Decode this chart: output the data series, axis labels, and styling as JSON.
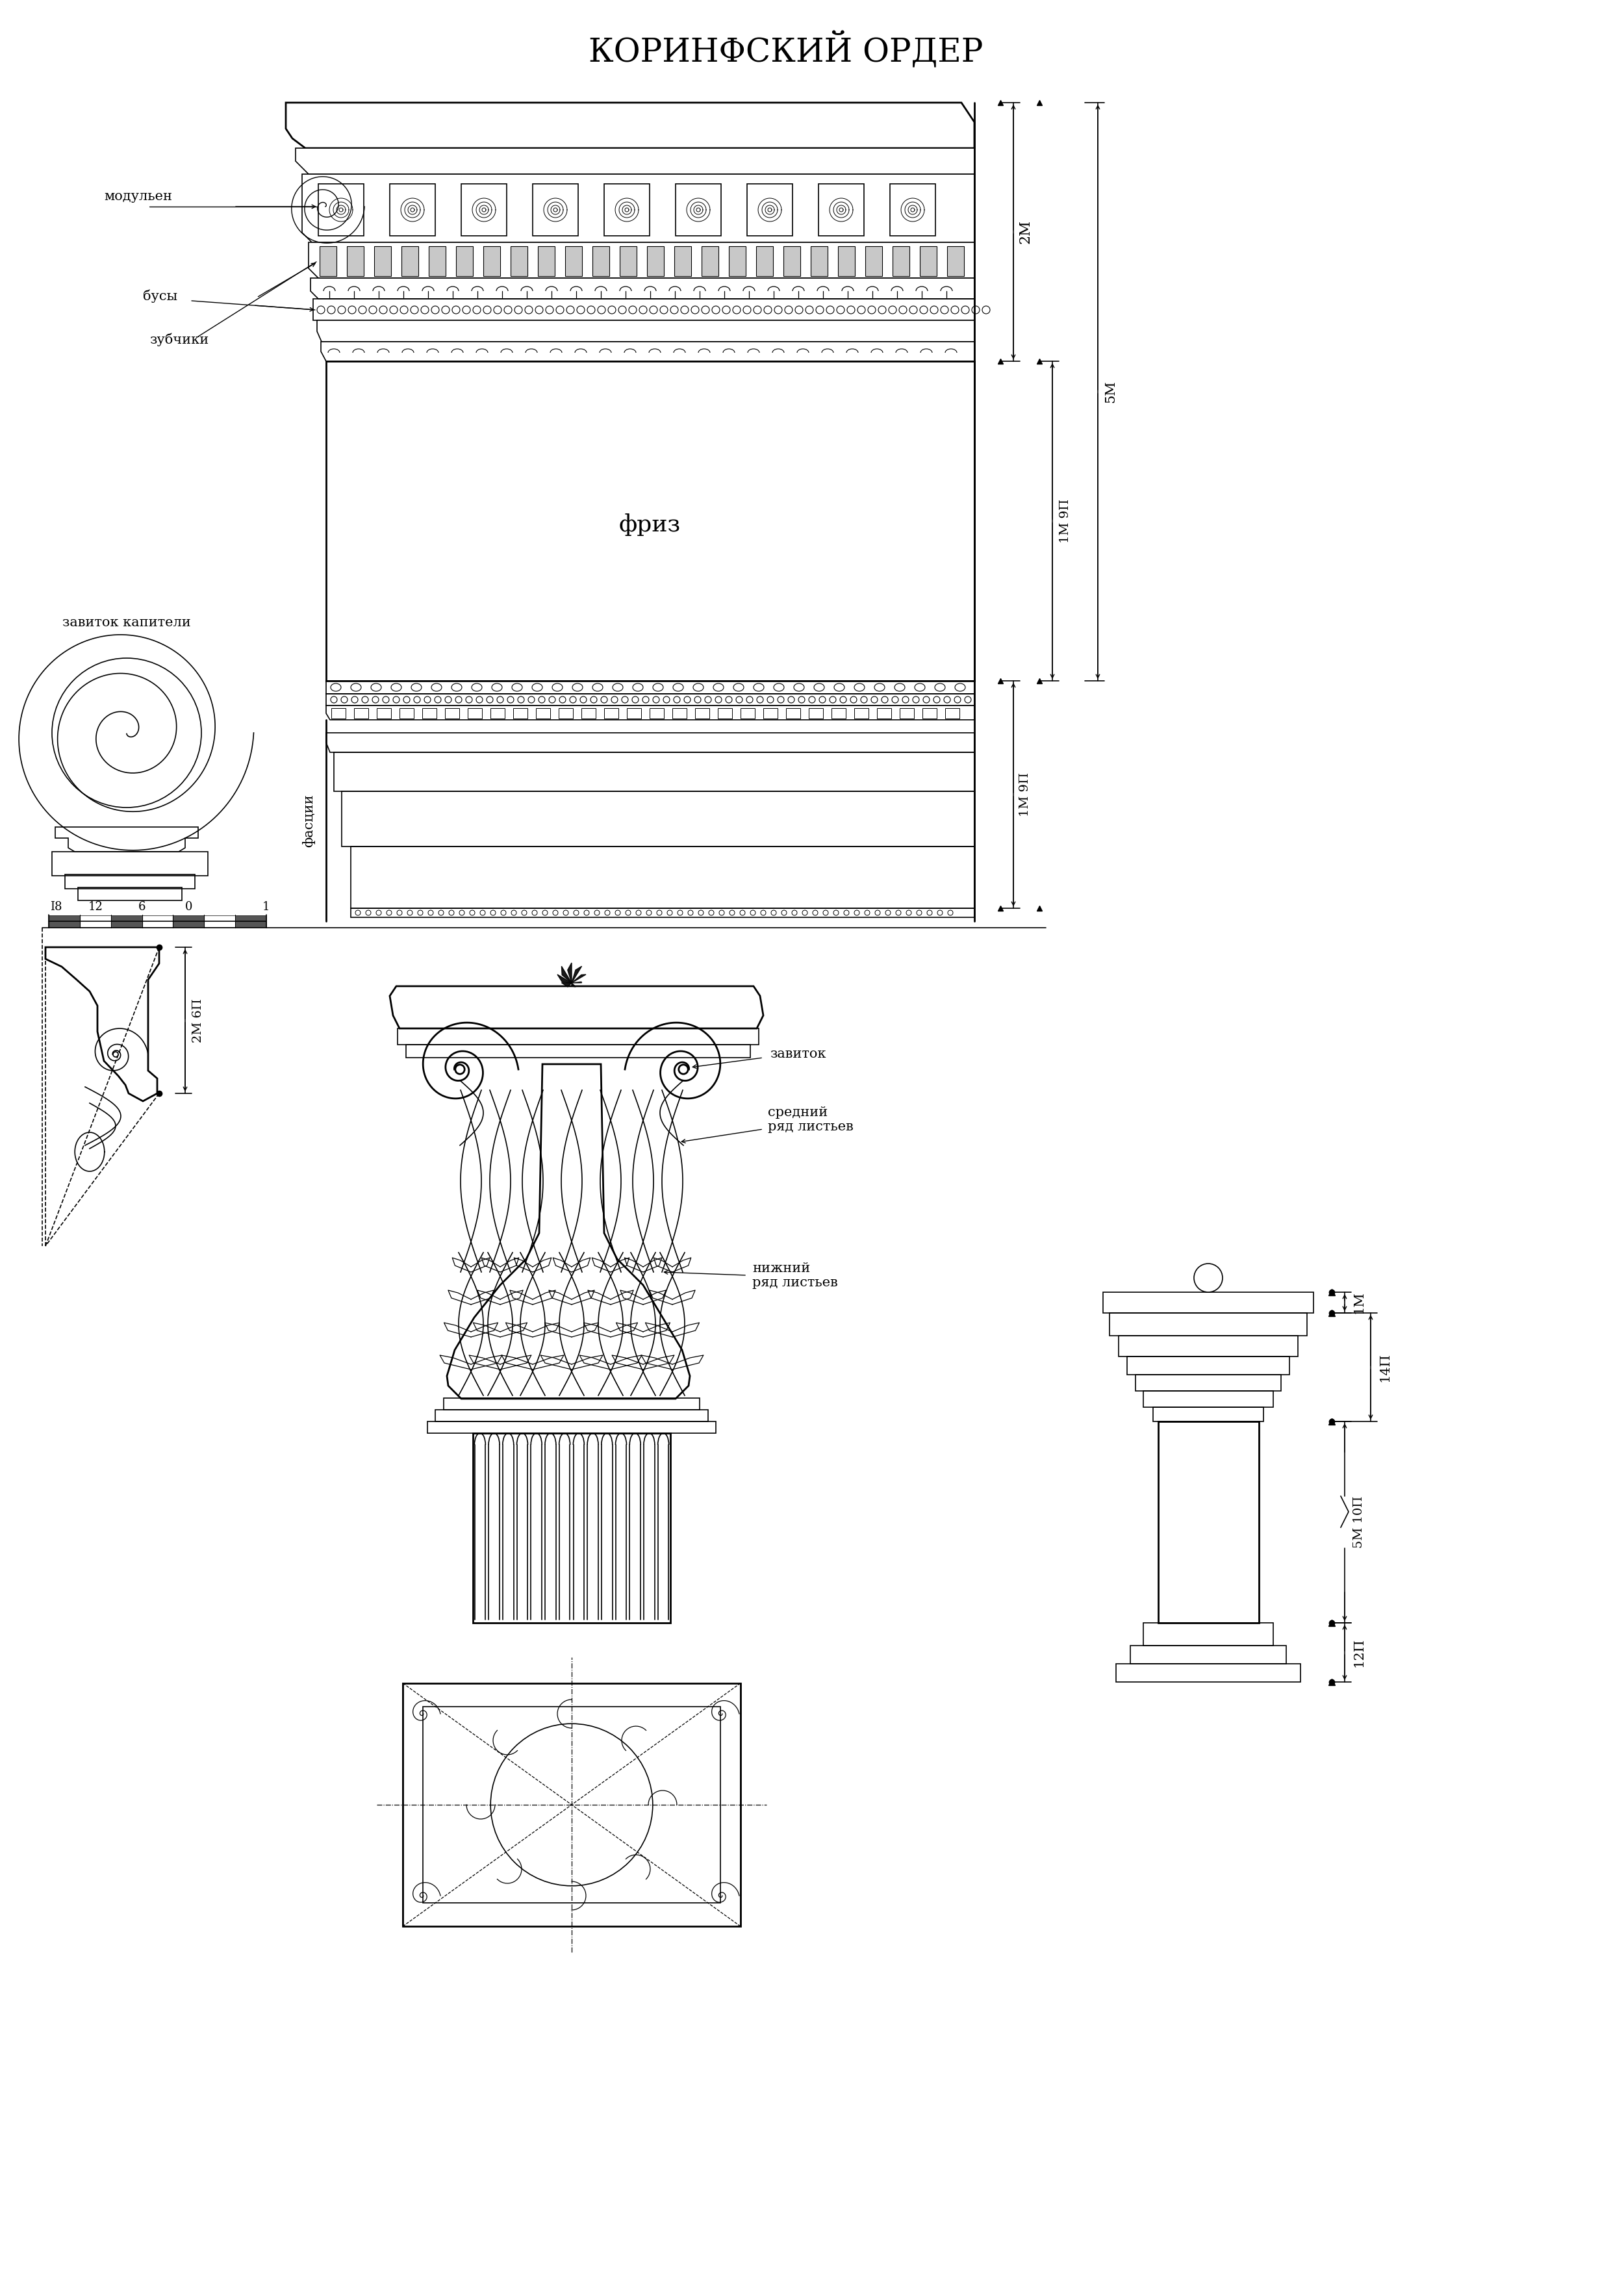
{
  "title": "КОРИНФСКИЙ ОРДЕР",
  "title_fontsize": 36,
  "background_color": "#ffffff",
  "line_color": "#000000",
  "labels": {
    "modulyon": "модульен",
    "busy": "бусы",
    "zubchiki": "зубчики",
    "zavitok_kapiteli": "завиток капители",
    "friz": "фриз",
    "fastsii": "фасции",
    "zavitok": "завиток",
    "sredniy_ryad": "средний\nряд листьев",
    "nizhniy_ryad": "нижний\nряд листьев",
    "dim_2m": "2М",
    "dim_1m9p_1": "1М 9П",
    "dim_5m": "5М",
    "dim_1m9p_2": "1М 9П",
    "dim_2m6p": "2М 6П",
    "dim_1m": "1М",
    "dim_14p": "14П",
    "dim_5m10p": "5М 10П",
    "dim_12p": "12П"
  }
}
